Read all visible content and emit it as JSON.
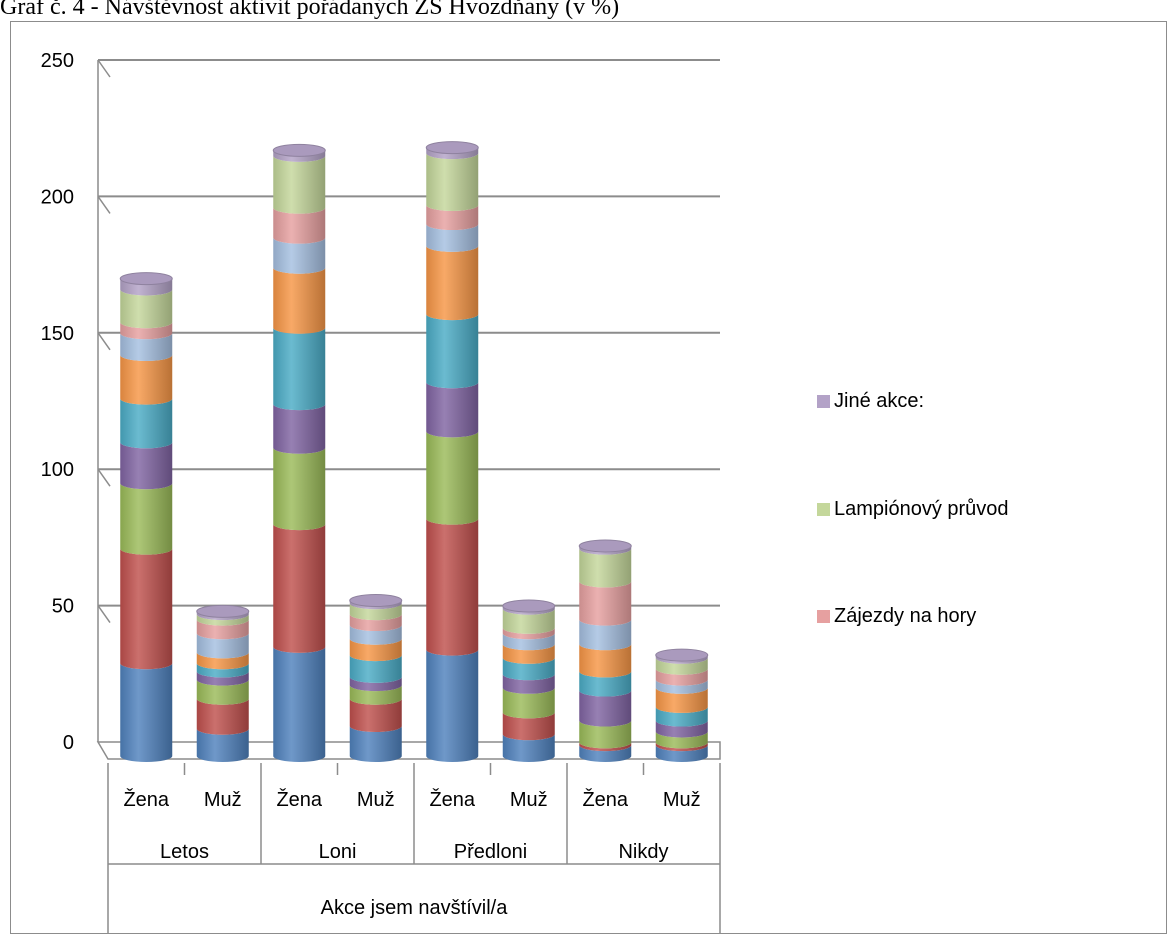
{
  "caption": "Graf č. 4 - Návštěvnost aktivit pořádaných ZŠ Hvozdňany (v %)",
  "chart_data": {
    "type": "bar",
    "subtype": "stacked-3d-cylinder",
    "title": "Graf č. 4 - Návštěvnost aktivit pořádaných ZŠ Hvozdňany (v %)",
    "xlabel": "Akce jsem navštívil/a",
    "ylabel": "",
    "ylim": [
      0,
      250
    ],
    "yticks": [
      0,
      50,
      100,
      150,
      200,
      250
    ],
    "grid": true,
    "legend_position": "right",
    "groups": [
      "Letos",
      "Loni",
      "Předloni",
      "Nikdy"
    ],
    "subcategories": [
      "Žena",
      "Muž"
    ],
    "categories": [
      "Žena",
      "Muž",
      "Žena",
      "Muž",
      "Žena",
      "Muž",
      "Žena",
      "Muž"
    ],
    "series": [
      {
        "color": "#4f81bd",
        "values": [
          34,
          10,
          40,
          11,
          39,
          8,
          4,
          4
        ]
      },
      {
        "color": "#c0504d",
        "values": [
          42,
          11,
          45,
          10,
          48,
          8,
          1,
          1
        ]
      },
      {
        "color": "#9bbb59",
        "values": [
          24,
          7,
          28,
          5,
          32,
          9,
          8,
          4
        ]
      },
      {
        "color": "#8064a2",
        "values": [
          15,
          3,
          16,
          3,
          18,
          5,
          11,
          4
        ]
      },
      {
        "color": "#4bacc6",
        "values": [
          16,
          3,
          28,
          8,
          25,
          6,
          7,
          5
        ]
      },
      {
        "color": "#f79646",
        "values": [
          16,
          4,
          22,
          6,
          25,
          5,
          10,
          7
        ]
      },
      {
        "color": "#a5bfe0",
        "values": [
          8,
          7,
          11,
          5,
          8,
          4,
          9,
          3
        ]
      },
      {
        "name": "Zájezdy na hory",
        "color": "#e6a0a0",
        "values": [
          4,
          5,
          11,
          4,
          7,
          2,
          14,
          4
        ]
      },
      {
        "name": "Lampiónový průvod",
        "color": "#c4d79b",
        "values": [
          12,
          2,
          19,
          4,
          19,
          7,
          12,
          4
        ]
      },
      {
        "name": "Jiné akce:",
        "color": "#b3a2c7",
        "values": [
          4,
          1,
          2,
          1,
          2,
          1,
          1,
          1
        ]
      }
    ],
    "legend": [
      "Jiné akce:",
      "Lampiónový průvod",
      "Zájezdy na hory"
    ]
  }
}
